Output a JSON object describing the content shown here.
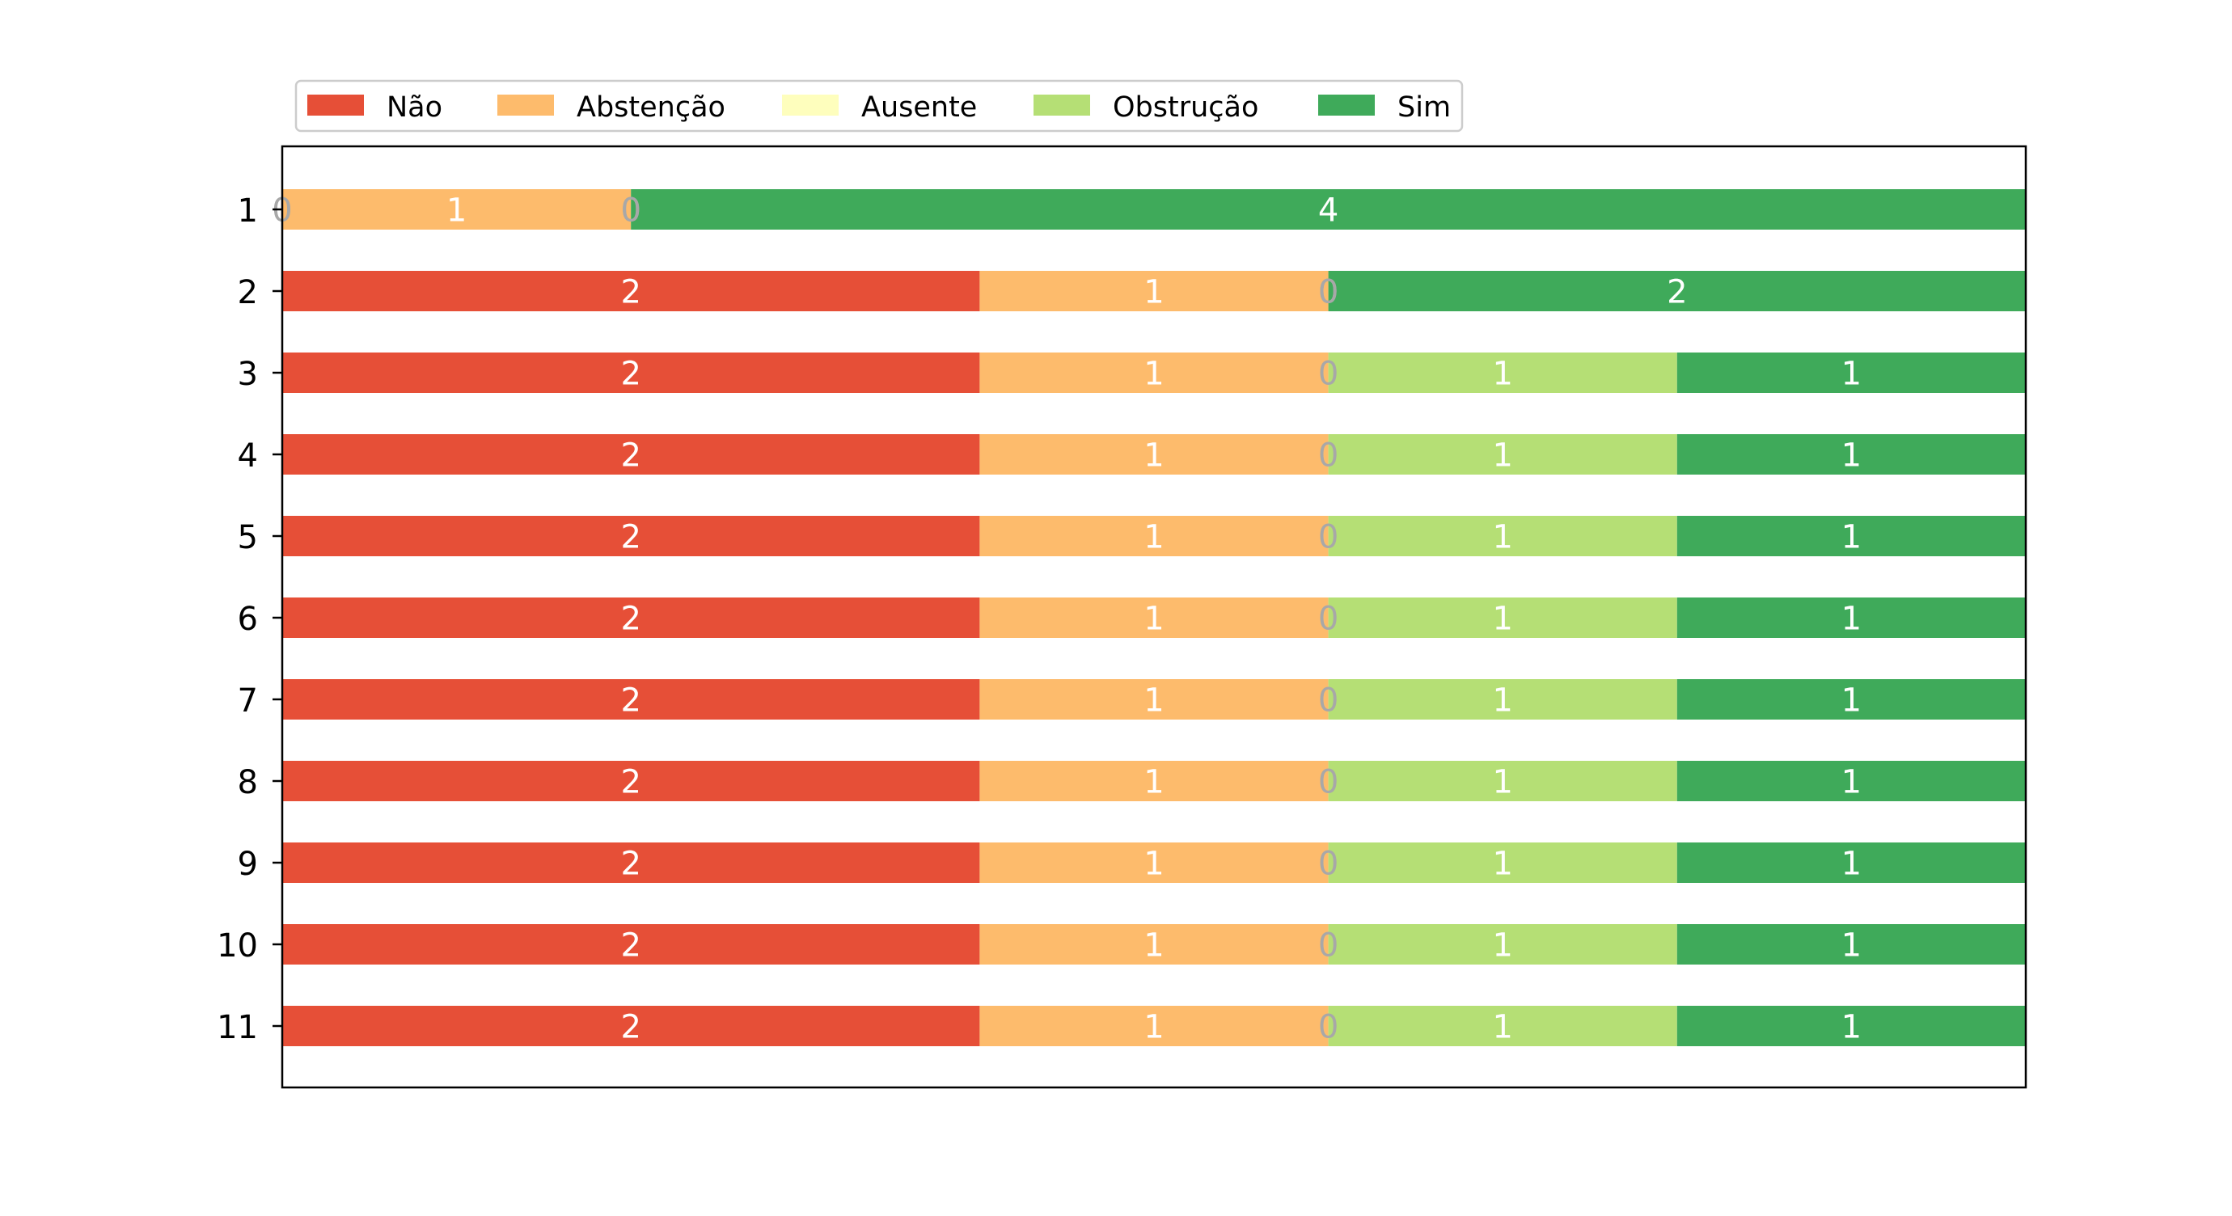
{
  "chart_data": {
    "type": "bar",
    "orientation": "horizontal",
    "stacked": true,
    "normalized": true,
    "categories": [
      "1",
      "2",
      "3",
      "4",
      "5",
      "6",
      "7",
      "8",
      "9",
      "10",
      "11"
    ],
    "series": [
      {
        "name": "Não",
        "color": "#e64f37",
        "label_color": "#ffffff",
        "values": [
          0,
          2,
          2,
          2,
          2,
          2,
          2,
          2,
          2,
          2,
          2
        ]
      },
      {
        "name": "Abstenção",
        "color": "#fdbb6c",
        "label_color": "#ffffff",
        "values": [
          1,
          1,
          1,
          1,
          1,
          1,
          1,
          1,
          1,
          1,
          1
        ]
      },
      {
        "name": "Ausente",
        "color": "#fefebd",
        "label_color": "#ffffff",
        "values": [
          0,
          0,
          0,
          0,
          0,
          0,
          0,
          0,
          0,
          0,
          0
        ]
      },
      {
        "name": "Obstrução",
        "color": "#b5df75",
        "label_color": "#ffffff",
        "values": [
          0,
          0,
          1,
          1,
          1,
          1,
          1,
          1,
          1,
          1,
          1
        ]
      },
      {
        "name": "Sim",
        "color": "#3faa5a",
        "label_color": "#ffffff",
        "values": [
          4,
          2,
          1,
          1,
          1,
          1,
          1,
          1,
          1,
          1,
          1
        ]
      }
    ],
    "zero_label_color": "#a8a8a8",
    "title": "",
    "xlabel": "",
    "ylabel": "",
    "legend_position": "top-left, outside plot, single row",
    "grid": false,
    "x_ticks_visible": false
  }
}
